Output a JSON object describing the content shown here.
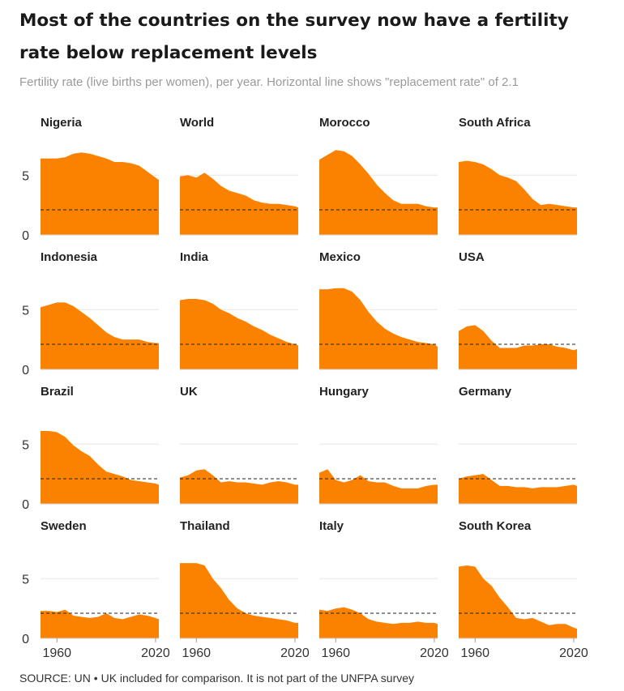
{
  "title": "Most of the countries on the survey now have a fertility rate below replacement levels",
  "subtitle": "Fertility rate (live births per women), per year. Horizontal line shows \"replacement rate\" of 2.1",
  "source": "SOURCE: UN • UK included for comparison. It is not part of the UNFPA survey",
  "colors": {
    "area": "#ff7f0e",
    "area_fill": "#fb8100",
    "grid": "#e6e6e6",
    "reference_line": "#222222",
    "text": "#222222"
  },
  "chart_data": {
    "type": "area",
    "layout": "small-multiples 4x4",
    "xlim": [
      1950,
      2022
    ],
    "ylim": [
      0,
      8
    ],
    "y_ticks": [
      0,
      5
    ],
    "y_tick_labels": [
      "0",
      "5"
    ],
    "x_ticks": [
      1960,
      2020
    ],
    "x_tick_labels": [
      "1960",
      "2020"
    ],
    "reference_line": {
      "value": 2.1,
      "style": "dashed"
    },
    "grid": true,
    "x": [
      1950,
      1955,
      1960,
      1965,
      1970,
      1975,
      1980,
      1985,
      1990,
      1995,
      2000,
      2005,
      2010,
      2015,
      2020,
      2022
    ],
    "series": [
      {
        "name": "Nigeria",
        "values": [
          6.4,
          6.4,
          6.4,
          6.5,
          6.8,
          6.9,
          6.8,
          6.6,
          6.4,
          6.1,
          6.1,
          6.0,
          5.8,
          5.3,
          4.8,
          4.6
        ]
      },
      {
        "name": "World",
        "values": [
          4.9,
          5.0,
          4.8,
          5.2,
          4.7,
          4.1,
          3.7,
          3.5,
          3.3,
          2.9,
          2.7,
          2.6,
          2.6,
          2.5,
          2.4,
          2.3
        ]
      },
      {
        "name": "Morocco",
        "values": [
          6.3,
          6.7,
          7.1,
          7.0,
          6.6,
          5.9,
          5.1,
          4.2,
          3.5,
          2.9,
          2.6,
          2.6,
          2.6,
          2.4,
          2.3,
          2.3
        ]
      },
      {
        "name": "South Africa",
        "values": [
          6.1,
          6.2,
          6.1,
          5.9,
          5.5,
          5.0,
          4.8,
          4.5,
          3.8,
          3.0,
          2.5,
          2.6,
          2.5,
          2.4,
          2.3,
          2.3
        ]
      },
      {
        "name": "Indonesia",
        "values": [
          5.2,
          5.4,
          5.6,
          5.6,
          5.3,
          4.8,
          4.3,
          3.7,
          3.1,
          2.7,
          2.5,
          2.5,
          2.5,
          2.3,
          2.2,
          2.2
        ]
      },
      {
        "name": "India",
        "values": [
          5.8,
          5.9,
          5.9,
          5.8,
          5.5,
          5.0,
          4.7,
          4.3,
          4.0,
          3.6,
          3.3,
          2.9,
          2.6,
          2.3,
          2.1,
          2.0
        ]
      },
      {
        "name": "Mexico",
        "values": [
          6.7,
          6.7,
          6.8,
          6.8,
          6.5,
          5.8,
          4.8,
          4.0,
          3.4,
          3.0,
          2.7,
          2.5,
          2.3,
          2.2,
          2.1,
          1.9
        ]
      },
      {
        "name": "USA",
        "values": [
          3.2,
          3.6,
          3.7,
          3.2,
          2.4,
          1.8,
          1.8,
          1.8,
          2.0,
          2.0,
          2.1,
          2.1,
          1.9,
          1.8,
          1.6,
          1.7
        ]
      },
      {
        "name": "Brazil",
        "values": [
          6.1,
          6.1,
          6.0,
          5.6,
          4.9,
          4.4,
          4.0,
          3.3,
          2.7,
          2.5,
          2.3,
          2.0,
          1.9,
          1.8,
          1.7,
          1.6
        ]
      },
      {
        "name": "UK",
        "values": [
          2.2,
          2.4,
          2.8,
          2.9,
          2.4,
          1.8,
          1.9,
          1.8,
          1.8,
          1.7,
          1.6,
          1.8,
          1.9,
          1.8,
          1.6,
          1.6
        ]
      },
      {
        "name": "Hungary",
        "values": [
          2.6,
          2.9,
          2.0,
          1.8,
          2.0,
          2.4,
          1.9,
          1.8,
          1.8,
          1.5,
          1.3,
          1.3,
          1.3,
          1.5,
          1.6,
          1.6
        ]
      },
      {
        "name": "Germany",
        "values": [
          2.1,
          2.3,
          2.4,
          2.5,
          2.0,
          1.5,
          1.5,
          1.4,
          1.4,
          1.3,
          1.4,
          1.4,
          1.4,
          1.5,
          1.6,
          1.5
        ]
      },
      {
        "name": "Sweden",
        "values": [
          2.3,
          2.3,
          2.2,
          2.4,
          1.9,
          1.8,
          1.7,
          1.8,
          2.1,
          1.7,
          1.6,
          1.8,
          2.0,
          1.9,
          1.7,
          1.6
        ]
      },
      {
        "name": "Thailand",
        "values": [
          6.3,
          6.3,
          6.3,
          6.1,
          5.0,
          4.2,
          3.2,
          2.5,
          2.1,
          1.9,
          1.8,
          1.7,
          1.6,
          1.5,
          1.3,
          1.3
        ]
      },
      {
        "name": "Italy",
        "values": [
          2.4,
          2.3,
          2.5,
          2.6,
          2.4,
          2.1,
          1.6,
          1.4,
          1.3,
          1.2,
          1.3,
          1.3,
          1.4,
          1.3,
          1.3,
          1.2
        ]
      },
      {
        "name": "South Korea",
        "values": [
          6.0,
          6.1,
          6.0,
          5.0,
          4.4,
          3.4,
          2.6,
          1.7,
          1.6,
          1.7,
          1.4,
          1.1,
          1.2,
          1.2,
          0.9,
          0.8
        ]
      }
    ]
  }
}
